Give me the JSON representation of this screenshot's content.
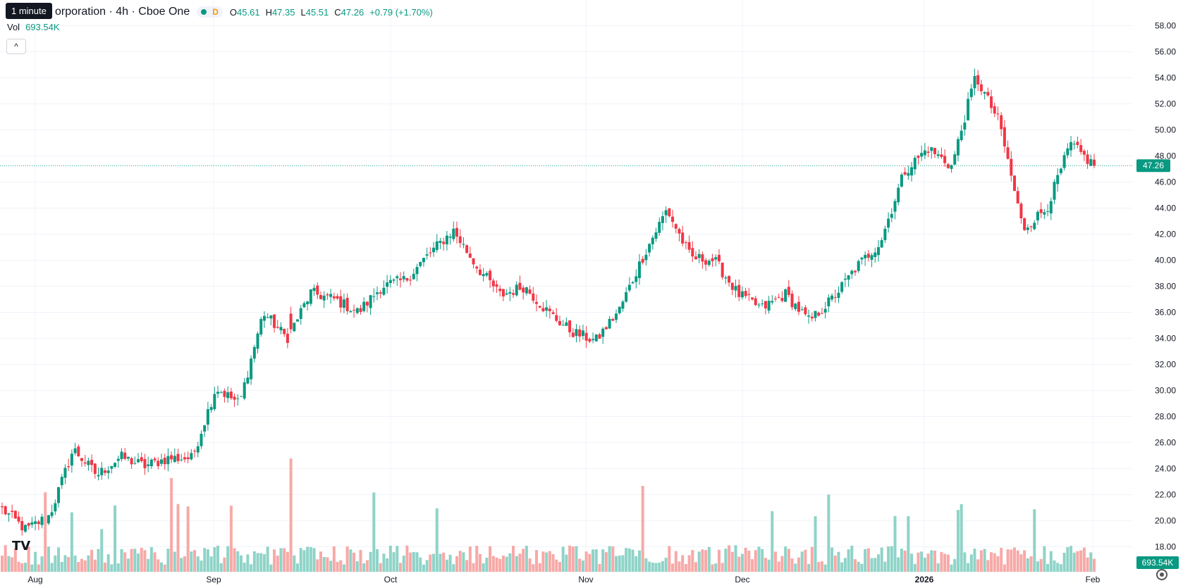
{
  "tooltip": "1 minute",
  "legend": {
    "title": "orporation · 4h · Cboe One",
    "status_badge": "D",
    "open_label": "O",
    "open": "45.61",
    "high_label": "H",
    "high": "47.35",
    "low_label": "L",
    "low": "45.51",
    "close_label": "C",
    "close": "47.26",
    "change": "+0.79 (+1.70%)"
  },
  "volume": {
    "label": "Vol",
    "value": "693.54K"
  },
  "icons": {
    "collapse": "chevron-up-icon",
    "logo": "tradingview-logo-icon",
    "settings": "gear-icon"
  },
  "colors": {
    "up": "#089981",
    "down": "#f23645",
    "up_vol": "#8fd3c8",
    "down_vol": "#f7a9a7",
    "grid": "#f0f3fa"
  },
  "chart_data": {
    "type": "candlestick",
    "interval": "4h",
    "price_axis": {
      "ticks": [
        "58.00",
        "56.00",
        "54.00",
        "52.00",
        "50.00",
        "48.00",
        "46.00",
        "44.00",
        "42.00",
        "40.00",
        "38.00",
        "36.00",
        "34.00",
        "32.00",
        "30.00",
        "28.00",
        "26.00",
        "24.00",
        "22.00",
        "20.00",
        "18.00"
      ],
      "ylim": [
        16.5,
        58.5
      ]
    },
    "time_axis": [
      "Aug",
      "Sep",
      "Oct",
      "Nov",
      "Dec",
      "2026",
      "Feb"
    ],
    "last_price_label": "47.26",
    "last_volume_label": "693.54K",
    "anchors": [
      [
        "Aug",
        20.9
      ],
      [
        "Aug",
        19.3
      ],
      [
        "Aug",
        20.4
      ],
      [
        "Aug",
        25.5
      ],
      [
        "Aug",
        23.5
      ],
      [
        "Sep",
        24.9
      ],
      [
        "Sep",
        24.2
      ],
      [
        "Sep",
        24.8
      ],
      [
        "Sep",
        24.8
      ],
      [
        "Sep",
        30.2
      ],
      [
        "Sep",
        29.0
      ],
      [
        "Sep",
        36.0
      ],
      [
        "Oct",
        34.0
      ],
      [
        "Oct",
        37.5
      ],
      [
        "Oct",
        37.0
      ],
      [
        "Oct",
        36.0
      ],
      [
        "Oct",
        38.0
      ],
      [
        "Oct",
        38.5
      ],
      [
        "Oct",
        40.5
      ],
      [
        "Oct",
        42.3
      ],
      [
        "Nov",
        39.5
      ],
      [
        "Nov",
        37.3
      ],
      [
        "Nov",
        38.0
      ],
      [
        "Nov",
        36.0
      ],
      [
        "Nov",
        34.5
      ],
      [
        "Nov",
        33.8
      ],
      [
        "Nov",
        36.2
      ],
      [
        "Dec",
        40.3
      ],
      [
        "Dec",
        43.9
      ],
      [
        "Dec",
        40.2
      ],
      [
        "Dec",
        40.0
      ],
      [
        "Dec",
        37.4
      ],
      [
        "Dec",
        36.3
      ],
      [
        "Dec",
        37.4
      ],
      [
        "Dec",
        35.3
      ],
      [
        "2026",
        37.1
      ],
      [
        "2026",
        39.5
      ],
      [
        "2026",
        41.4
      ],
      [
        "2026",
        46.8
      ],
      [
        "2026",
        48.6
      ],
      [
        "2026",
        47.2
      ],
      [
        "2026",
        54.1
      ],
      [
        "2026",
        50.6
      ],
      [
        "2026",
        42.4
      ],
      [
        "2026",
        44.0
      ],
      [
        "2026",
        48.9
      ],
      [
        "Feb",
        47.26
      ]
    ]
  }
}
